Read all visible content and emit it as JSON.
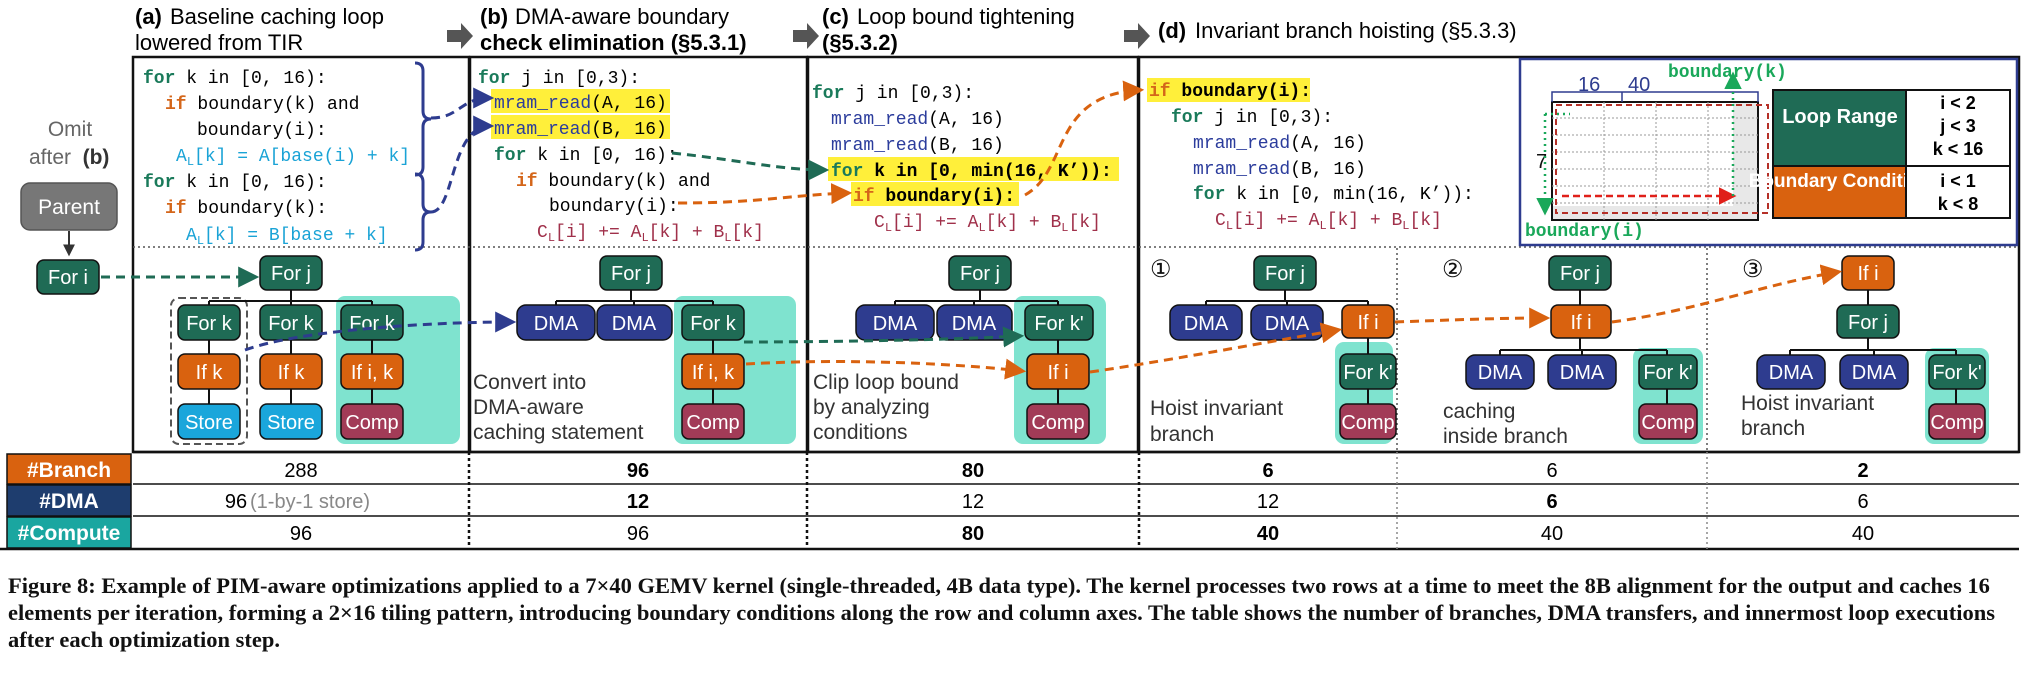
{
  "colors": {
    "kw_green": "#1a7a5a",
    "kw_orange": "#d4661a",
    "func_blue": "#2b3c9c",
    "cyan_text": "#1aa3d6",
    "compute_red": "#a0304a",
    "node_green": "#1f6b55",
    "node_orange": "#d9620f",
    "node_blue": "#2e3c8f",
    "node_cyan": "#1aa6db",
    "node_comp": "#a23b57",
    "highlight": "#ffef3a",
    "teal_bg": "#7fe3cf",
    "row_branch": "#d9620f",
    "row_dma": "#1e3d6e",
    "row_compute": "#1aa6a0"
  },
  "panels": {
    "a": {
      "label": "(a)",
      "title_line1": "Baseline caching loop",
      "title_line2": "lowered from TIR"
    },
    "b": {
      "label": "(b)",
      "title_line1": "DMA-aware boundary",
      "title_line2": "check elimination (§5.3.1)"
    },
    "c": {
      "label": "(c)",
      "title_line1": "Loop bound tightening",
      "title_line2": "(§5.3.2)"
    },
    "d": {
      "label": "(d)",
      "title_line1": "Invariant branch hoisting (§5.3.3)"
    }
  },
  "side": {
    "omit_line1": "Omit",
    "omit_line2": "after",
    "omit_b": "(b)",
    "parent": "Parent",
    "for_i": "For i"
  },
  "code": {
    "a": {
      "l1_kw": "for",
      "l1_rest": " k in [0, 16):",
      "l2_kw": "if",
      "l2_rest": " boundary(k) and",
      "l3": "boundary(i):",
      "l4": "A",
      "l4_sub": "L",
      "l4_rest": "[k] = A[base(i) + k]",
      "l5_kw": "for",
      "l5_rest": " k in [0, 16):",
      "l6_kw": "if",
      "l6_rest": " boundary(k):",
      "l7": "A",
      "l7_sub": "L",
      "l7_rest": "[k] = B[base + k]"
    },
    "b": {
      "l1_kw": "for",
      "l1_rest": " j in [0,3):",
      "l2_fn": "mram_read",
      "l2_rest": "(A, 16)",
      "l3_fn": "mram_read",
      "l3_rest": "(B, 16)",
      "l4_kw": "for",
      "l4_rest": " k in [0, 16):",
      "l5_kw": "if",
      "l5_rest": " boundary(k) and",
      "l6": "boundary(i):",
      "l7_a": "C",
      "l7_b": "[i] += A",
      "l7_c": "[k] + B",
      "l7_d": "[k]"
    },
    "c": {
      "l1_kw": "for",
      "l1_rest": " j in [0,3):",
      "l2_fn": "mram_read",
      "l2_rest": "(A, 16)",
      "l3_fn": "mram_read",
      "l3_rest": "(B, 16)",
      "l4_kw": "for",
      "l4_rest": " k in [0, min(16, K’)):",
      "l5_kw": "if",
      "l5_rest": " boundary(i):",
      "l6_a": "C",
      "l6_b": "[i] += A",
      "l6_c": "[k] + B",
      "l6_d": "[k]"
    },
    "d": {
      "l1_kw": "if",
      "l1_rest": " boundary(i):",
      "l2_kw": "for",
      "l2_rest": " j in [0,3):",
      "l3_fn": "mram_read",
      "l3_rest": "(A, 16)",
      "l4_fn": "mram_read",
      "l4_rest": "(B, 16)",
      "l5_kw": "for",
      "l5_rest": " k in [0, min(16, K’)):",
      "l6_a": "C",
      "l6_b": "[i] += A",
      "l6_c": "[k] + B",
      "l6_d": "[k]",
      "sub": "L"
    }
  },
  "inset": {
    "boundary_k": "boundary(k)",
    "boundary_i": "boundary(i)",
    "dim16": "16",
    "dim40": "40",
    "dim7": "7",
    "loop_range": "Loop Range",
    "loop_values": [
      "i < 2",
      "j < 3",
      "k < 16"
    ],
    "boundary_condition": "Boundary Condition",
    "boundary_values": [
      "i < 1",
      "k < 8"
    ]
  },
  "trees": {
    "a": {
      "root": "For j",
      "n1": "For k",
      "n2": "For k",
      "n3": "For k",
      "c1": "If k",
      "c2": "If k",
      "c3": "If i, k",
      "l1": "Store",
      "l2": "Store",
      "l3": "Comp"
    },
    "b": {
      "root": "For j",
      "n1": "DMA",
      "n2": "DMA",
      "n3": "For k",
      "c3": "If i, k",
      "l3": "Comp",
      "note1": "Convert into",
      "note2": "DMA-aware",
      "note3": "caching statement"
    },
    "c": {
      "root": "For j",
      "n1": "DMA",
      "n2": "DMA",
      "n3": "For k'",
      "c3": "If i",
      "l3": "Comp",
      "note1": "Clip loop bound",
      "note2": "by analyzing",
      "note3": "conditions"
    },
    "d1": {
      "num": "①",
      "root": "For j",
      "n1": "DMA",
      "n2": "DMA",
      "n3": "If i",
      "c3": "For k'",
      "l3": "Comp",
      "note1": "Hoist invariant",
      "note2": "branch"
    },
    "d2": {
      "num": "②",
      "root": "For j",
      "n1": "If i",
      "c1": "DMA",
      "c2": "DMA",
      "c3": "For k'",
      "l3": "Comp",
      "note1": "caching",
      "note2": "inside branch"
    },
    "d3": {
      "num": "③",
      "root": "If i",
      "n1": "For j",
      "c1": "DMA",
      "c2": "DMA",
      "c3": "For k'",
      "l3": "Comp",
      "note1": "Hoist invariant",
      "note2": "branch"
    }
  },
  "table": {
    "row_labels": [
      "#Branch",
      "#DMA",
      "#Compute"
    ],
    "branch": [
      "288",
      "96",
      "80",
      "6",
      "6",
      "2"
    ],
    "dma": [
      "96",
      "12",
      "12",
      "12",
      "6",
      "6"
    ],
    "dma_note": "(1-by-1 store)",
    "compute": [
      "96",
      "96",
      "80",
      "40",
      "40",
      "40"
    ]
  },
  "caption": "Figure 8: Example of PIM-aware optimizations applied to a 7×40 GEMV kernel (single-threaded, 4B data type). The kernel processes two rows at a time to meet the 8B alignment for the output and caches 16 elements per iteration, forming a 2×16 tiling pattern, introducing boundary conditions along the row and column axes. The table shows the number of branches, DMA transfers, and innermost loop executions after each optimization step."
}
